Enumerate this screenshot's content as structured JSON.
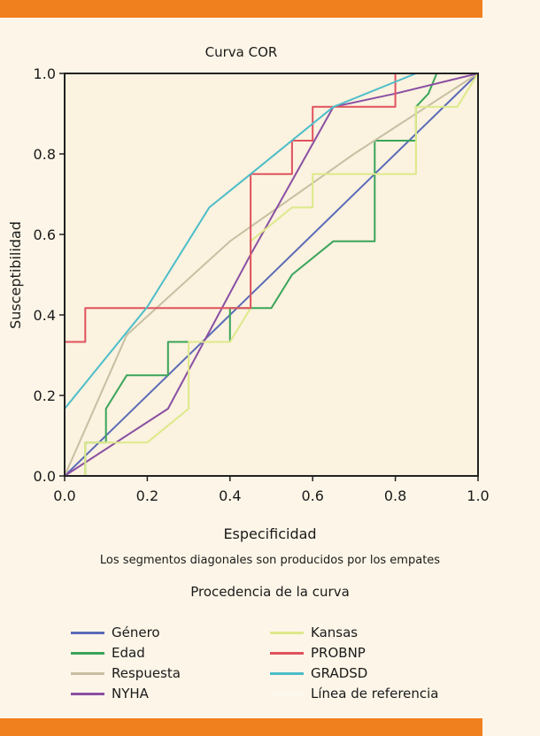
{
  "chart_data": {
    "type": "line",
    "title": "Curva COR",
    "xlabel": "Especificidad",
    "ylabel": "Susceptibilidad",
    "xlim": [
      0,
      1
    ],
    "ylim": [
      0,
      1
    ],
    "xticks": [
      "0.0",
      "0.2",
      "0.4",
      "0.6",
      "0.8",
      "1.0"
    ],
    "yticks": [
      "0.0",
      "0.2",
      "0.4",
      "0.6",
      "0.8",
      "1.0"
    ],
    "note": "Los segmentos diagonales son producidos por los empates",
    "legend_title": "Procedencia de la curva",
    "legend_position": "bottom",
    "series": [
      {
        "name": "Género",
        "color": "#5b6bb8",
        "points": [
          [
            0,
            0
          ],
          [
            1,
            1
          ]
        ]
      },
      {
        "name": "Edad",
        "color": "#3aa45a",
        "points": [
          [
            0,
            0
          ],
          [
            0.05,
            0
          ],
          [
            0.05,
            0.083
          ],
          [
            0.1,
            0.083
          ],
          [
            0.1,
            0.167
          ],
          [
            0.15,
            0.25
          ],
          [
            0.25,
            0.25
          ],
          [
            0.25,
            0.333
          ],
          [
            0.4,
            0.333
          ],
          [
            0.4,
            0.417
          ],
          [
            0.5,
            0.417
          ],
          [
            0.55,
            0.5
          ],
          [
            0.65,
            0.583
          ],
          [
            0.75,
            0.583
          ],
          [
            0.75,
            0.833
          ],
          [
            0.85,
            0.833
          ],
          [
            0.85,
            0.917
          ],
          [
            0.88,
            0.95
          ],
          [
            0.9,
            1
          ],
          [
            1,
            1
          ]
        ]
      },
      {
        "name": "Respuesta",
        "color": "#c8bfa3",
        "points": [
          [
            0,
            0
          ],
          [
            0.15,
            0.35
          ],
          [
            0.4,
            0.583
          ],
          [
            0.7,
            0.8
          ],
          [
            1,
            1
          ]
        ]
      },
      {
        "name": "NYHA",
        "color": "#8a4fa3",
        "points": [
          [
            0,
            0
          ],
          [
            0.25,
            0.167
          ],
          [
            0.45,
            0.55
          ],
          [
            0.65,
            0.917
          ],
          [
            0.8,
            0.95
          ],
          [
            1,
            1
          ]
        ]
      },
      {
        "name": "Kansas",
        "color": "#dde98a",
        "points": [
          [
            0,
            0
          ],
          [
            0.05,
            0
          ],
          [
            0.05,
            0.083
          ],
          [
            0.2,
            0.083
          ],
          [
            0.3,
            0.167
          ],
          [
            0.3,
            0.333
          ],
          [
            0.4,
            0.333
          ],
          [
            0.45,
            0.417
          ],
          [
            0.45,
            0.583
          ],
          [
            0.55,
            0.667
          ],
          [
            0.6,
            0.667
          ],
          [
            0.6,
            0.75
          ],
          [
            0.85,
            0.75
          ],
          [
            0.85,
            0.917
          ],
          [
            0.95,
            0.917
          ],
          [
            1,
            1
          ]
        ]
      },
      {
        "name": "PROBNP",
        "color": "#e0525e",
        "points": [
          [
            0,
            0
          ],
          [
            0,
            0.333
          ],
          [
            0.05,
            0.333
          ],
          [
            0.05,
            0.417
          ],
          [
            0.45,
            0.417
          ],
          [
            0.45,
            0.75
          ],
          [
            0.55,
            0.75
          ],
          [
            0.55,
            0.833
          ],
          [
            0.6,
            0.833
          ],
          [
            0.6,
            0.917
          ],
          [
            0.8,
            0.917
          ],
          [
            0.8,
            1
          ],
          [
            1,
            1
          ]
        ]
      },
      {
        "name": "GRADSD",
        "color": "#4cbdc9",
        "points": [
          [
            0,
            0.167
          ],
          [
            0.2,
            0.42
          ],
          [
            0.35,
            0.667
          ],
          [
            0.45,
            0.75
          ],
          [
            0.65,
            0.917
          ],
          [
            0.85,
            1
          ],
          [
            1,
            1
          ]
        ]
      },
      {
        "name": "Línea de referencia",
        "color": "#faf8ef",
        "points": [
          [
            0,
            0
          ],
          [
            1,
            1
          ]
        ]
      }
    ]
  }
}
